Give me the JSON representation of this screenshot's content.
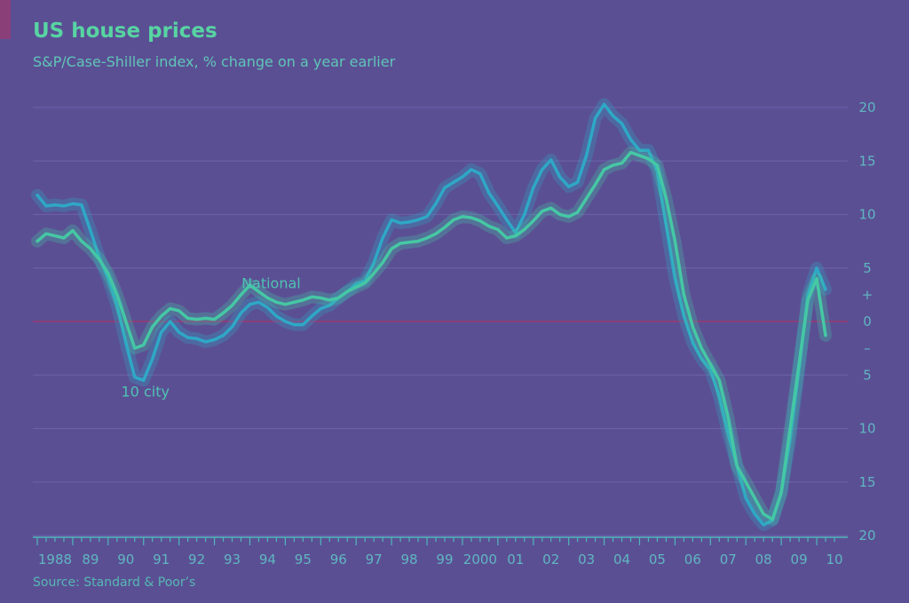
{
  "colors": {
    "background": "#5b4f94",
    "accent": "#8a3f79",
    "national": "#45c8a4",
    "ten_city": "#2ea8c6",
    "grid": "#6a5fa6",
    "zero_line": "#8a3f79"
  },
  "chart_data": {
    "type": "line",
    "title": "US house prices",
    "subtitle": "S&P/Case-Shiller index, % change on a year earlier",
    "source": "Source: Standard & Poor’s",
    "xlabel": "",
    "ylabel": "",
    "xlim": [
      1988,
      2010.5
    ],
    "ylim": [
      -20,
      20
    ],
    "grid": true,
    "y_ticks": [
      {
        "value": 20,
        "label": "20"
      },
      {
        "value": 15,
        "label": "15"
      },
      {
        "value": 10,
        "label": "10"
      },
      {
        "value": 5,
        "label": "5"
      },
      {
        "value": 2.5,
        "label": "+"
      },
      {
        "value": 0,
        "label": "0"
      },
      {
        "value": -2.5,
        "label": "–"
      },
      {
        "value": -5,
        "label": "5"
      },
      {
        "value": -10,
        "label": "10"
      },
      {
        "value": -15,
        "label": "15"
      },
      {
        "value": -20,
        "label": "20"
      }
    ],
    "x_ticks": [
      {
        "value": 1988,
        "label": "1988"
      },
      {
        "value": 1989,
        "label": "89"
      },
      {
        "value": 1990,
        "label": "90"
      },
      {
        "value": 1991,
        "label": "91"
      },
      {
        "value": 1992,
        "label": "92"
      },
      {
        "value": 1993,
        "label": "93"
      },
      {
        "value": 1994,
        "label": "94"
      },
      {
        "value": 1995,
        "label": "95"
      },
      {
        "value": 1996,
        "label": "96"
      },
      {
        "value": 1997,
        "label": "97"
      },
      {
        "value": 1998,
        "label": "98"
      },
      {
        "value": 1999,
        "label": "99"
      },
      {
        "value": 2000,
        "label": "2000"
      },
      {
        "value": 2001,
        "label": "01"
      },
      {
        "value": 2002,
        "label": "02"
      },
      {
        "value": 2003,
        "label": "03"
      },
      {
        "value": 2004,
        "label": "04"
      },
      {
        "value": 2005,
        "label": "05"
      },
      {
        "value": 2006,
        "label": "06"
      },
      {
        "value": 2007,
        "label": "07"
      },
      {
        "value": 2008,
        "label": "08"
      },
      {
        "value": 2009,
        "label": "09"
      },
      {
        "value": 2010,
        "label": "10"
      }
    ],
    "series": [
      {
        "name": "National",
        "label_at": [
          1994.6,
          3.1
        ],
        "points": [
          [
            1988.0,
            7.5
          ],
          [
            1988.25,
            8.2
          ],
          [
            1988.5,
            8.0
          ],
          [
            1988.75,
            7.8
          ],
          [
            1989.0,
            8.5
          ],
          [
            1989.25,
            7.5
          ],
          [
            1989.5,
            6.8
          ],
          [
            1989.75,
            5.8
          ],
          [
            1990.0,
            4.5
          ],
          [
            1990.25,
            2.5
          ],
          [
            1990.5,
            0.0
          ],
          [
            1990.75,
            -2.5
          ],
          [
            1991.0,
            -2.2
          ],
          [
            1991.25,
            -0.5
          ],
          [
            1991.5,
            0.5
          ],
          [
            1991.75,
            1.2
          ],
          [
            1992.0,
            1.0
          ],
          [
            1992.25,
            0.3
          ],
          [
            1992.5,
            0.2
          ],
          [
            1992.75,
            0.3
          ],
          [
            1993.0,
            0.2
          ],
          [
            1993.25,
            0.8
          ],
          [
            1993.5,
            1.5
          ],
          [
            1993.75,
            2.5
          ],
          [
            1994.0,
            3.4
          ],
          [
            1994.25,
            2.8
          ],
          [
            1994.5,
            2.2
          ],
          [
            1994.75,
            1.8
          ],
          [
            1995.0,
            1.6
          ],
          [
            1995.25,
            1.8
          ],
          [
            1995.5,
            2.0
          ],
          [
            1995.75,
            2.3
          ],
          [
            1996.0,
            2.2
          ],
          [
            1996.25,
            2.0
          ],
          [
            1996.5,
            2.2
          ],
          [
            1996.75,
            2.8
          ],
          [
            1997.0,
            3.2
          ],
          [
            1997.25,
            3.6
          ],
          [
            1997.5,
            4.5
          ],
          [
            1997.75,
            5.5
          ],
          [
            1998.0,
            6.8
          ],
          [
            1998.25,
            7.3
          ],
          [
            1998.5,
            7.4
          ],
          [
            1998.75,
            7.5
          ],
          [
            1999.0,
            7.8
          ],
          [
            1999.25,
            8.2
          ],
          [
            1999.5,
            8.8
          ],
          [
            1999.75,
            9.5
          ],
          [
            2000.0,
            9.8
          ],
          [
            2000.25,
            9.7
          ],
          [
            2000.5,
            9.4
          ],
          [
            2000.75,
            8.9
          ],
          [
            2001.0,
            8.6
          ],
          [
            2001.25,
            7.8
          ],
          [
            2001.5,
            8.0
          ],
          [
            2001.75,
            8.6
          ],
          [
            2002.0,
            9.4
          ],
          [
            2002.25,
            10.3
          ],
          [
            2002.5,
            10.6
          ],
          [
            2002.75,
            10.0
          ],
          [
            2003.0,
            9.8
          ],
          [
            2003.25,
            10.2
          ],
          [
            2003.5,
            11.5
          ],
          [
            2003.75,
            12.8
          ],
          [
            2004.0,
            14.2
          ],
          [
            2004.25,
            14.6
          ],
          [
            2004.5,
            14.8
          ],
          [
            2004.75,
            15.8
          ],
          [
            2005.0,
            15.5
          ],
          [
            2005.25,
            15.2
          ],
          [
            2005.5,
            14.6
          ],
          [
            2005.75,
            11.5
          ],
          [
            2006.0,
            7.5
          ],
          [
            2006.25,
            2.5
          ],
          [
            2006.5,
            -0.5
          ],
          [
            2006.75,
            -2.5
          ],
          [
            2007.0,
            -4.0
          ],
          [
            2007.25,
            -5.5
          ],
          [
            2007.5,
            -9.0
          ],
          [
            2007.75,
            -13.5
          ],
          [
            2008.0,
            -15.0
          ],
          [
            2008.25,
            -16.5
          ],
          [
            2008.5,
            -18.0
          ],
          [
            2008.75,
            -18.5
          ],
          [
            2009.0,
            -16.0
          ],
          [
            2009.25,
            -10.0
          ],
          [
            2009.5,
            -4.0
          ],
          [
            2009.75,
            2.0
          ],
          [
            2010.0,
            4.0
          ],
          [
            2010.25,
            -1.3
          ]
        ]
      },
      {
        "name": "10 city",
        "label_at": [
          1991.05,
          -7.0
        ],
        "points": [
          [
            1988.0,
            11.8
          ],
          [
            1988.25,
            10.8
          ],
          [
            1988.5,
            10.9
          ],
          [
            1988.75,
            10.8
          ],
          [
            1989.0,
            11.0
          ],
          [
            1989.25,
            10.9
          ],
          [
            1989.5,
            8.5
          ],
          [
            1989.75,
            6.0
          ],
          [
            1990.0,
            4.0
          ],
          [
            1990.25,
            1.5
          ],
          [
            1990.5,
            -2.0
          ],
          [
            1990.75,
            -5.2
          ],
          [
            1991.0,
            -5.5
          ],
          [
            1991.25,
            -3.5
          ],
          [
            1991.5,
            -1.0
          ],
          [
            1991.75,
            0.0
          ],
          [
            1992.0,
            -1.0
          ],
          [
            1992.25,
            -1.5
          ],
          [
            1992.5,
            -1.6
          ],
          [
            1992.75,
            -1.9
          ],
          [
            1993.0,
            -1.7
          ],
          [
            1993.25,
            -1.3
          ],
          [
            1993.5,
            -0.5
          ],
          [
            1993.75,
            0.8
          ],
          [
            1994.0,
            1.6
          ],
          [
            1994.25,
            1.8
          ],
          [
            1994.5,
            1.3
          ],
          [
            1994.75,
            0.5
          ],
          [
            1995.0,
            0.0
          ],
          [
            1995.25,
            -0.3
          ],
          [
            1995.5,
            -0.3
          ],
          [
            1995.75,
            0.5
          ],
          [
            1996.0,
            1.2
          ],
          [
            1996.25,
            1.5
          ],
          [
            1996.5,
            2.2
          ],
          [
            1996.75,
            2.8
          ],
          [
            1997.0,
            3.5
          ],
          [
            1997.25,
            3.8
          ],
          [
            1997.5,
            5.5
          ],
          [
            1997.75,
            7.8
          ],
          [
            1998.0,
            9.5
          ],
          [
            1998.25,
            9.2
          ],
          [
            1998.5,
            9.3
          ],
          [
            1998.75,
            9.5
          ],
          [
            1999.0,
            9.8
          ],
          [
            1999.25,
            11.0
          ],
          [
            1999.5,
            12.5
          ],
          [
            1999.75,
            13.0
          ],
          [
            2000.0,
            13.5
          ],
          [
            2000.25,
            14.2
          ],
          [
            2000.5,
            13.8
          ],
          [
            2000.75,
            12.0
          ],
          [
            2001.0,
            10.8
          ],
          [
            2001.25,
            9.5
          ],
          [
            2001.5,
            8.3
          ],
          [
            2001.75,
            10.0
          ],
          [
            2002.0,
            12.5
          ],
          [
            2002.25,
            14.2
          ],
          [
            2002.5,
            15.1
          ],
          [
            2002.75,
            13.5
          ],
          [
            2003.0,
            12.6
          ],
          [
            2003.25,
            13.0
          ],
          [
            2003.5,
            15.5
          ],
          [
            2003.75,
            19.0
          ],
          [
            2004.0,
            20.3
          ],
          [
            2004.25,
            19.2
          ],
          [
            2004.5,
            18.5
          ],
          [
            2004.75,
            17.0
          ],
          [
            2005.0,
            16.0
          ],
          [
            2005.25,
            16.0
          ],
          [
            2005.5,
            14.0
          ],
          [
            2005.75,
            9.0
          ],
          [
            2006.0,
            4.0
          ],
          [
            2006.25,
            0.5
          ],
          [
            2006.5,
            -2.0
          ],
          [
            2006.75,
            -3.5
          ],
          [
            2007.0,
            -4.5
          ],
          [
            2007.25,
            -7.0
          ],
          [
            2007.5,
            -10.5
          ],
          [
            2007.75,
            -13.5
          ],
          [
            2008.0,
            -16.5
          ],
          [
            2008.25,
            -18.0
          ],
          [
            2008.5,
            -19.0
          ],
          [
            2008.75,
            -18.6
          ],
          [
            2009.0,
            -16.0
          ],
          [
            2009.25,
            -11.0
          ],
          [
            2009.5,
            -4.5
          ],
          [
            2009.75,
            2.5
          ],
          [
            2010.0,
            5.0
          ],
          [
            2010.25,
            3.0
          ]
        ]
      }
    ]
  }
}
